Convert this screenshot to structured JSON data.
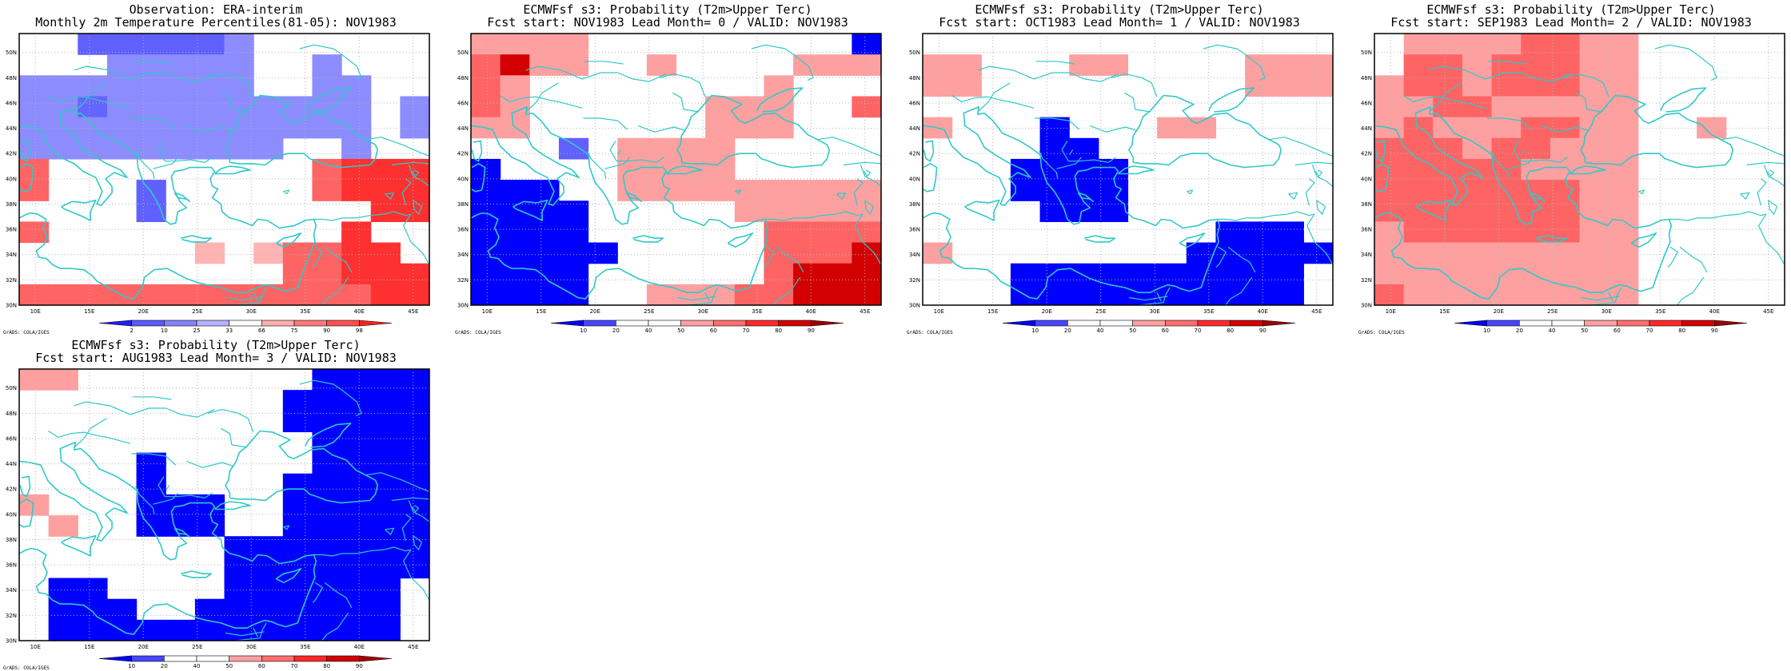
{
  "x_labels": [
    "10E",
    "15E",
    "20E",
    "25E",
    "30E",
    "35E",
    "40E",
    "45E"
  ],
  "y_labels": [
    "30N",
    "32N",
    "34N",
    "36N",
    "38N",
    "40N",
    "42N",
    "44N",
    "46N",
    "48N",
    "50N"
  ],
  "credit": "GrADS: COLA/IGES",
  "colors": {
    "coast": "#30c8c8",
    "grid": "#b4b4b4"
  },
  "panels": [
    {
      "title1": "Observation: ERA-interim",
      "title2": "Monthly 2m Temperature Percentiles(81-05): NOV1983",
      "colorbar": {
        "labels": [
          "2",
          "10",
          "25",
          "33",
          "66",
          "75",
          "90",
          "98"
        ],
        "colors": [
          "#1e1eff",
          "#5a5aff",
          "#8282ff",
          "#b4b4ff",
          "#ffffff",
          "#ffafaf",
          "#ff7878",
          "#ff5050",
          "#ff2020"
        ]
      },
      "grid_rows": [
        "WWbbbbbLWWWWWW",
        "WWWLLLLLWWLWWW",
        "LLLLLLLLWWLLWW",
        "LLmLLLLLLLLLWL",
        "LLLLLLLLLLLLWL",
        "LLLLLLLLLWWLWW",
        "RWWWWWWWWWRSSS",
        "RWWWbWWWWWRSSS",
        "WWWWbWWWWWWWSS",
        "RWWWWWWWWWWSWW",
        "WWWWWWpWpRRSSW",
        "WWWWWWWWWRRSSS",
        "RRRRRRRRRRRRSS"
      ]
    },
    {
      "title1": "ECMWFsf s3: Probability (T2m>Upper Terc)",
      "title2": "Fcst start: NOV1983  Lead Month= 0 / VALID: NOV1983",
      "colorbar": {
        "labels": [
          "10",
          "20",
          "40",
          "50",
          "60",
          "70",
          "80",
          "90"
        ],
        "colors": [
          "#0000ff",
          "#4646ff",
          "#ffffff",
          "#ffffff",
          "#ffa0a0",
          "#ff6e6e",
          "#ff2828",
          "#d20000",
          "#a00000"
        ]
      },
      "grid_rows": [
        "PPPPWWWWWWWWWB",
        "RDPPWWPWWWWPPP",
        "RPWWWWWWWWPWWW",
        "RPWWWWWWPPPWWR",
        "PPWWWWWWPPPWWW",
        "WWWbWPPPPWWWWW",
        "BWWWWPPPPWWWWW",
        "BBBWWPPPPPPPPP",
        "BBBBWWWWWPPPPP",
        "BBBBWWWWWWRRRR",
        "BBBBBWWWWWRRRD",
        "BBBBWWWWWWRDDD",
        "BBBBWWPPPRRDDD"
      ]
    },
    {
      "title1": "ECMWFsf s3: Probability (T2m>Upper Terc)",
      "title2": "Fcst start: OCT1983  Lead Month= 1 / VALID: NOV1983",
      "colorbar": {
        "labels": [
          "10",
          "20",
          "40",
          "50",
          "60",
          "70",
          "80",
          "90"
        ],
        "colors": [
          "#0000ff",
          "#4646ff",
          "#ffffff",
          "#ffffff",
          "#ffa0a0",
          "#ff6e6e",
          "#ff2828",
          "#d20000",
          "#a00000"
        ]
      },
      "grid_rows": [
        "WWWWWWWWWWWWWW",
        "PPWWWPPWWWWPPP",
        "PPWWWWWWWWWPPP",
        "WWWWWWWWWWWWWW",
        "PWWWBWWWPPWWWW",
        "WWWWBBWWWWWWWW",
        "WWWBBBBWWWWWWW",
        "WWWBBBBWWWWWWW",
        "WWWWBBBWWWWWWW",
        "WWWWWWWWWWBBBW",
        "PWWWWWWWWBBBBB",
        "WWWBBBBBBBBBBW",
        "WWWBBBBBBBBBBW"
      ]
    },
    {
      "title1": "ECMWFsf s3: Probability (T2m>Upper Terc)",
      "title2": "Fcst start: SEP1983  Lead Month= 2 / VALID: NOV1983",
      "colorbar": {
        "labels": [
          "10",
          "20",
          "40",
          "50",
          "60",
          "70",
          "80",
          "90"
        ],
        "colors": [
          "#0000ff",
          "#4646ff",
          "#ffffff",
          "#ffffff",
          "#ffa0a0",
          "#ff6e6e",
          "#ff2828",
          "#d20000",
          "#a00000"
        ]
      },
      "grid_rows": [
        "WPPPPRRPPWWWWW",
        "WRRPRRRPPWWWWW",
        "PRRPRRRPPWWWWW",
        "PPRRPPPPPWWWWW",
        "PRPPPRRPPWWPWW",
        "RRRPRRPPPWWWWW",
        "RRRRRPPPPWWWWW",
        "RRRRRRRPPWWWWW",
        "RRRRRRRPPWWWWW",
        "PRRRRRRPPWWWWW",
        "PPPPPPPPPWWWWW",
        "PPPPPPPPPWWWWW",
        "RPPPPPPPPWWWWW"
      ]
    },
    {
      "title1": "ECMWFsf s3: Probability (T2m>Upper Terc)",
      "title2": "Fcst start: AUG1983  Lead Month= 3 / VALID: NOV1983",
      "colorbar": {
        "labels": [
          "10",
          "20",
          "40",
          "50",
          "60",
          "70",
          "80",
          "90"
        ],
        "colors": [
          "#0000ff",
          "#4646ff",
          "#ffffff",
          "#ffffff",
          "#ffa0a0",
          "#ff6e6e",
          "#ff2828",
          "#d20000",
          "#a00000"
        ]
      },
      "grid_rows": [
        "PPWWWWWWWWBBBB",
        "WWWWWWWWWBBBBB",
        "WWWWWWWWWBBBBB",
        "WWWWWWWWWWBBBB",
        "WWWWBWWWWWBBBB",
        "WWWWBWWWWBBBBB",
        "PWWWBBBWWBBBBB",
        "WPWWBBBWWBBBBB",
        "WWWWWWWBBBBBBB",
        "WWWWWWWBBBBBBB",
        "WBBWWWWBBBBBBW",
        "WBBBWWBBBBBBBW",
        "WBBBBBBBBBBBBW"
      ]
    }
  ]
}
